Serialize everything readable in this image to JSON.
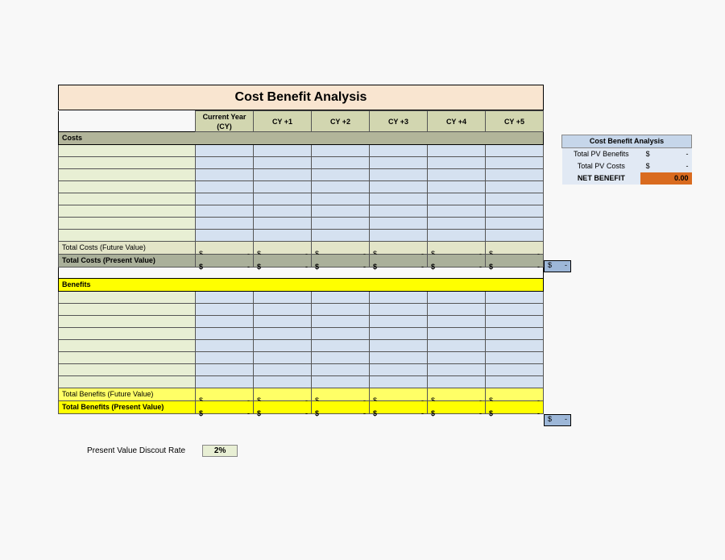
{
  "title": "Cost Benefit Analysis",
  "year_headers": [
    "Current Year (CY)",
    "CY +1",
    "CY +2",
    "CY +3",
    "CY +4",
    "CY +5"
  ],
  "costs": {
    "section_label": "Costs",
    "blank_rows": 8,
    "future_label": "Total Costs (Future Value)",
    "pv_label": "Total Costs (Present Value)",
    "future_cells": [
      "$   -",
      "$   -",
      "$   -",
      "$   -",
      "$   -",
      "$   -"
    ],
    "pv_cells": [
      "$   -",
      "$   -",
      "$   -",
      "$   -",
      "$   -",
      "$   -"
    ],
    "pv_extra": "$   -"
  },
  "benefits": {
    "section_label": "Benefits",
    "blank_rows": 8,
    "future_label": "Total Benefits (Future Value)",
    "pv_label": "Total Benefits (Present Value)",
    "future_cells": [
      "$   -",
      "$   -",
      "$   -",
      "$   -",
      "$   -",
      "$   -"
    ],
    "pv_cells": [
      "$   -",
      "$   -",
      "$   -",
      "$   -",
      "$   -",
      "$   -"
    ],
    "pv_extra": "$   -"
  },
  "discount": {
    "label": "Present Value Discout Rate",
    "value": "2%"
  },
  "summary": {
    "title": "Cost Benefit Analysis",
    "rows": [
      {
        "label": "Total PV Benefits",
        "sym": "$",
        "val": "-"
      },
      {
        "label": "Total PV Costs",
        "sym": "$",
        "val": "-"
      }
    ],
    "net_label": "NET BENEFIT",
    "net_value": "0.00"
  },
  "colors": {
    "title_bg": "#f9e5d0",
    "header_bg": "#d2d6b0",
    "costs_section_bg": "#b2b59a",
    "benefits_section_bg": "#ffff00",
    "input_label_bg": "#e8efd4",
    "input_year_bg": "#d5e1f0",
    "costs_pv_bg": "#aab09a",
    "benefits_pv_bg": "#ffff00",
    "extra_pv_bg": "#9db7d8",
    "summary_hdr_bg": "#c6d6ea",
    "summary_row_bg": "#e1e9f4",
    "net_value_bg": "#d96b1f"
  }
}
